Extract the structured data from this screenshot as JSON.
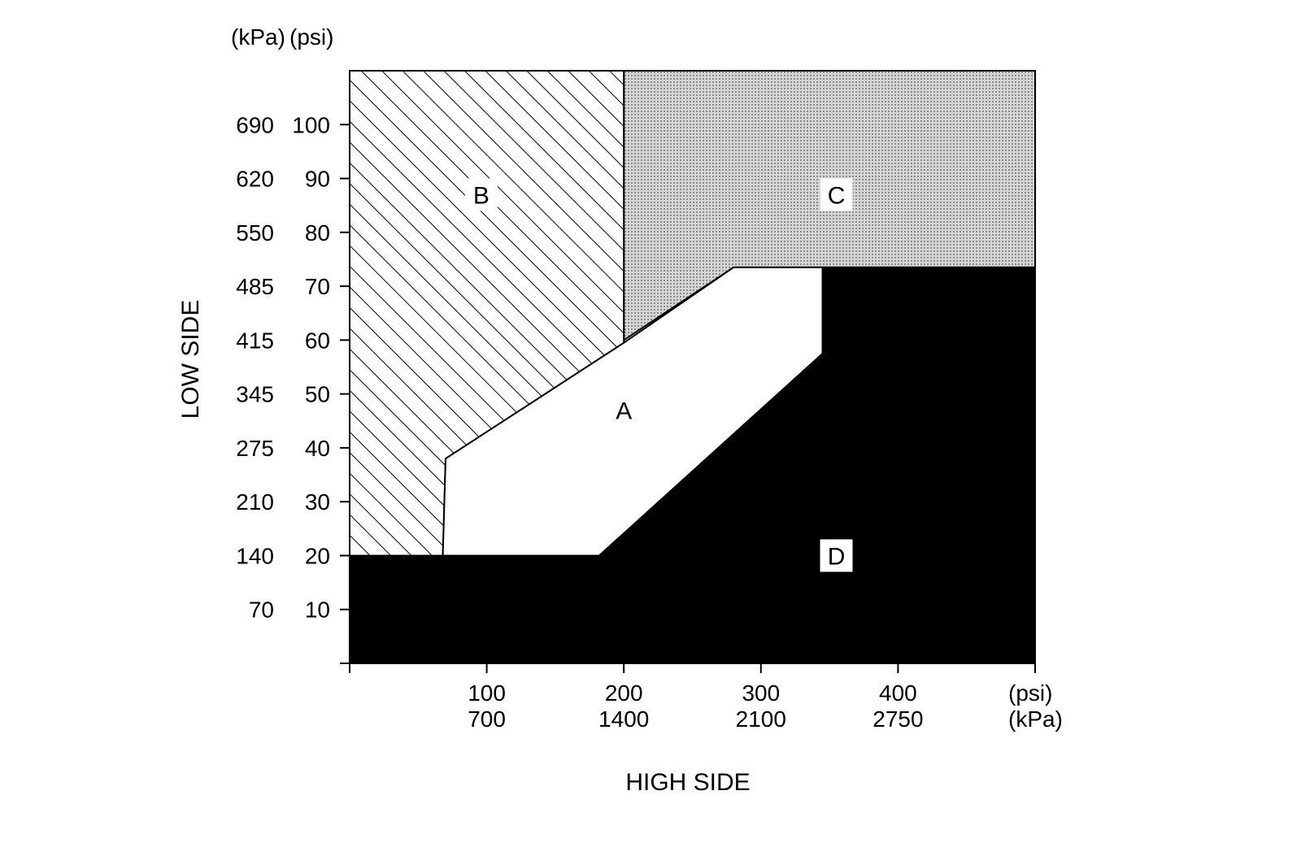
{
  "chart_data": {
    "type": "area",
    "title": "",
    "xlabel": "HIGH SIDE",
    "ylabel": "LOW SIDE",
    "x_units": [
      "(psi)",
      "(kPa)"
    ],
    "y_units": [
      "(kPa)",
      "(psi)"
    ],
    "xlim": [
      0,
      500
    ],
    "ylim": [
      0,
      110
    ],
    "x_ticks": [
      {
        "value": 0,
        "psi": "",
        "kpa": ""
      },
      {
        "value": 100,
        "psi": "100",
        "kpa": "700"
      },
      {
        "value": 200,
        "psi": "200",
        "kpa": "1400"
      },
      {
        "value": 300,
        "psi": "300",
        "kpa": "2100"
      },
      {
        "value": 400,
        "psi": "400",
        "kpa": "2750"
      },
      {
        "value": 500,
        "psi": "",
        "kpa": ""
      }
    ],
    "y_ticks": [
      {
        "value": 0,
        "kpa": "",
        "psi": ""
      },
      {
        "value": 10,
        "kpa": "70",
        "psi": "10"
      },
      {
        "value": 20,
        "kpa": "140",
        "psi": "20"
      },
      {
        "value": 30,
        "kpa": "210",
        "psi": "30"
      },
      {
        "value": 40,
        "kpa": "275",
        "psi": "40"
      },
      {
        "value": 50,
        "kpa": "345",
        "psi": "50"
      },
      {
        "value": 60,
        "kpa": "415",
        "psi": "60"
      },
      {
        "value": 70,
        "kpa": "485",
        "psi": "70"
      },
      {
        "value": 80,
        "kpa": "550",
        "psi": "80"
      },
      {
        "value": 90,
        "kpa": "620",
        "psi": "90"
      },
      {
        "value": 100,
        "kpa": "690",
        "psi": "100"
      }
    ],
    "regions": [
      {
        "id": "C",
        "label": "C",
        "fill": "dotted-gray",
        "label_at": [
          355,
          87
        ],
        "polygon": [
          [
            200,
            110
          ],
          [
            500,
            110
          ],
          [
            500,
            73.5
          ],
          [
            280,
            73.5
          ],
          [
            200,
            60
          ]
        ]
      },
      {
        "id": "B",
        "label": "B",
        "fill": "diagonal-hatch",
        "label_at": [
          96,
          87
        ],
        "polygon": [
          [
            0,
            110
          ],
          [
            200,
            110
          ],
          [
            200,
            59.5
          ],
          [
            70,
            38
          ],
          [
            68,
            20
          ],
          [
            0,
            20
          ]
        ]
      },
      {
        "id": "A",
        "label": "A",
        "fill": "white",
        "label_at": [
          200,
          47
        ],
        "polygon": [
          [
            68,
            20
          ],
          [
            70,
            38
          ],
          [
            200,
            59.5
          ],
          [
            280,
            73.5
          ],
          [
            345,
            73.5
          ],
          [
            345,
            57.5
          ],
          [
            182,
            20
          ]
        ]
      },
      {
        "id": "D",
        "label": "D",
        "fill": "black",
        "label_at": [
          355,
          20
        ],
        "polygon": [
          [
            0,
            0
          ],
          [
            500,
            0
          ],
          [
            500,
            73.5
          ],
          [
            345,
            73.5
          ],
          [
            345,
            57.5
          ],
          [
            182,
            20
          ],
          [
            0,
            20
          ]
        ]
      }
    ],
    "grid": false,
    "legend": "none",
    "colors": {
      "ink": "#000000",
      "paper": "#ffffff",
      "dotted_gray": "#c8c8c8"
    }
  }
}
